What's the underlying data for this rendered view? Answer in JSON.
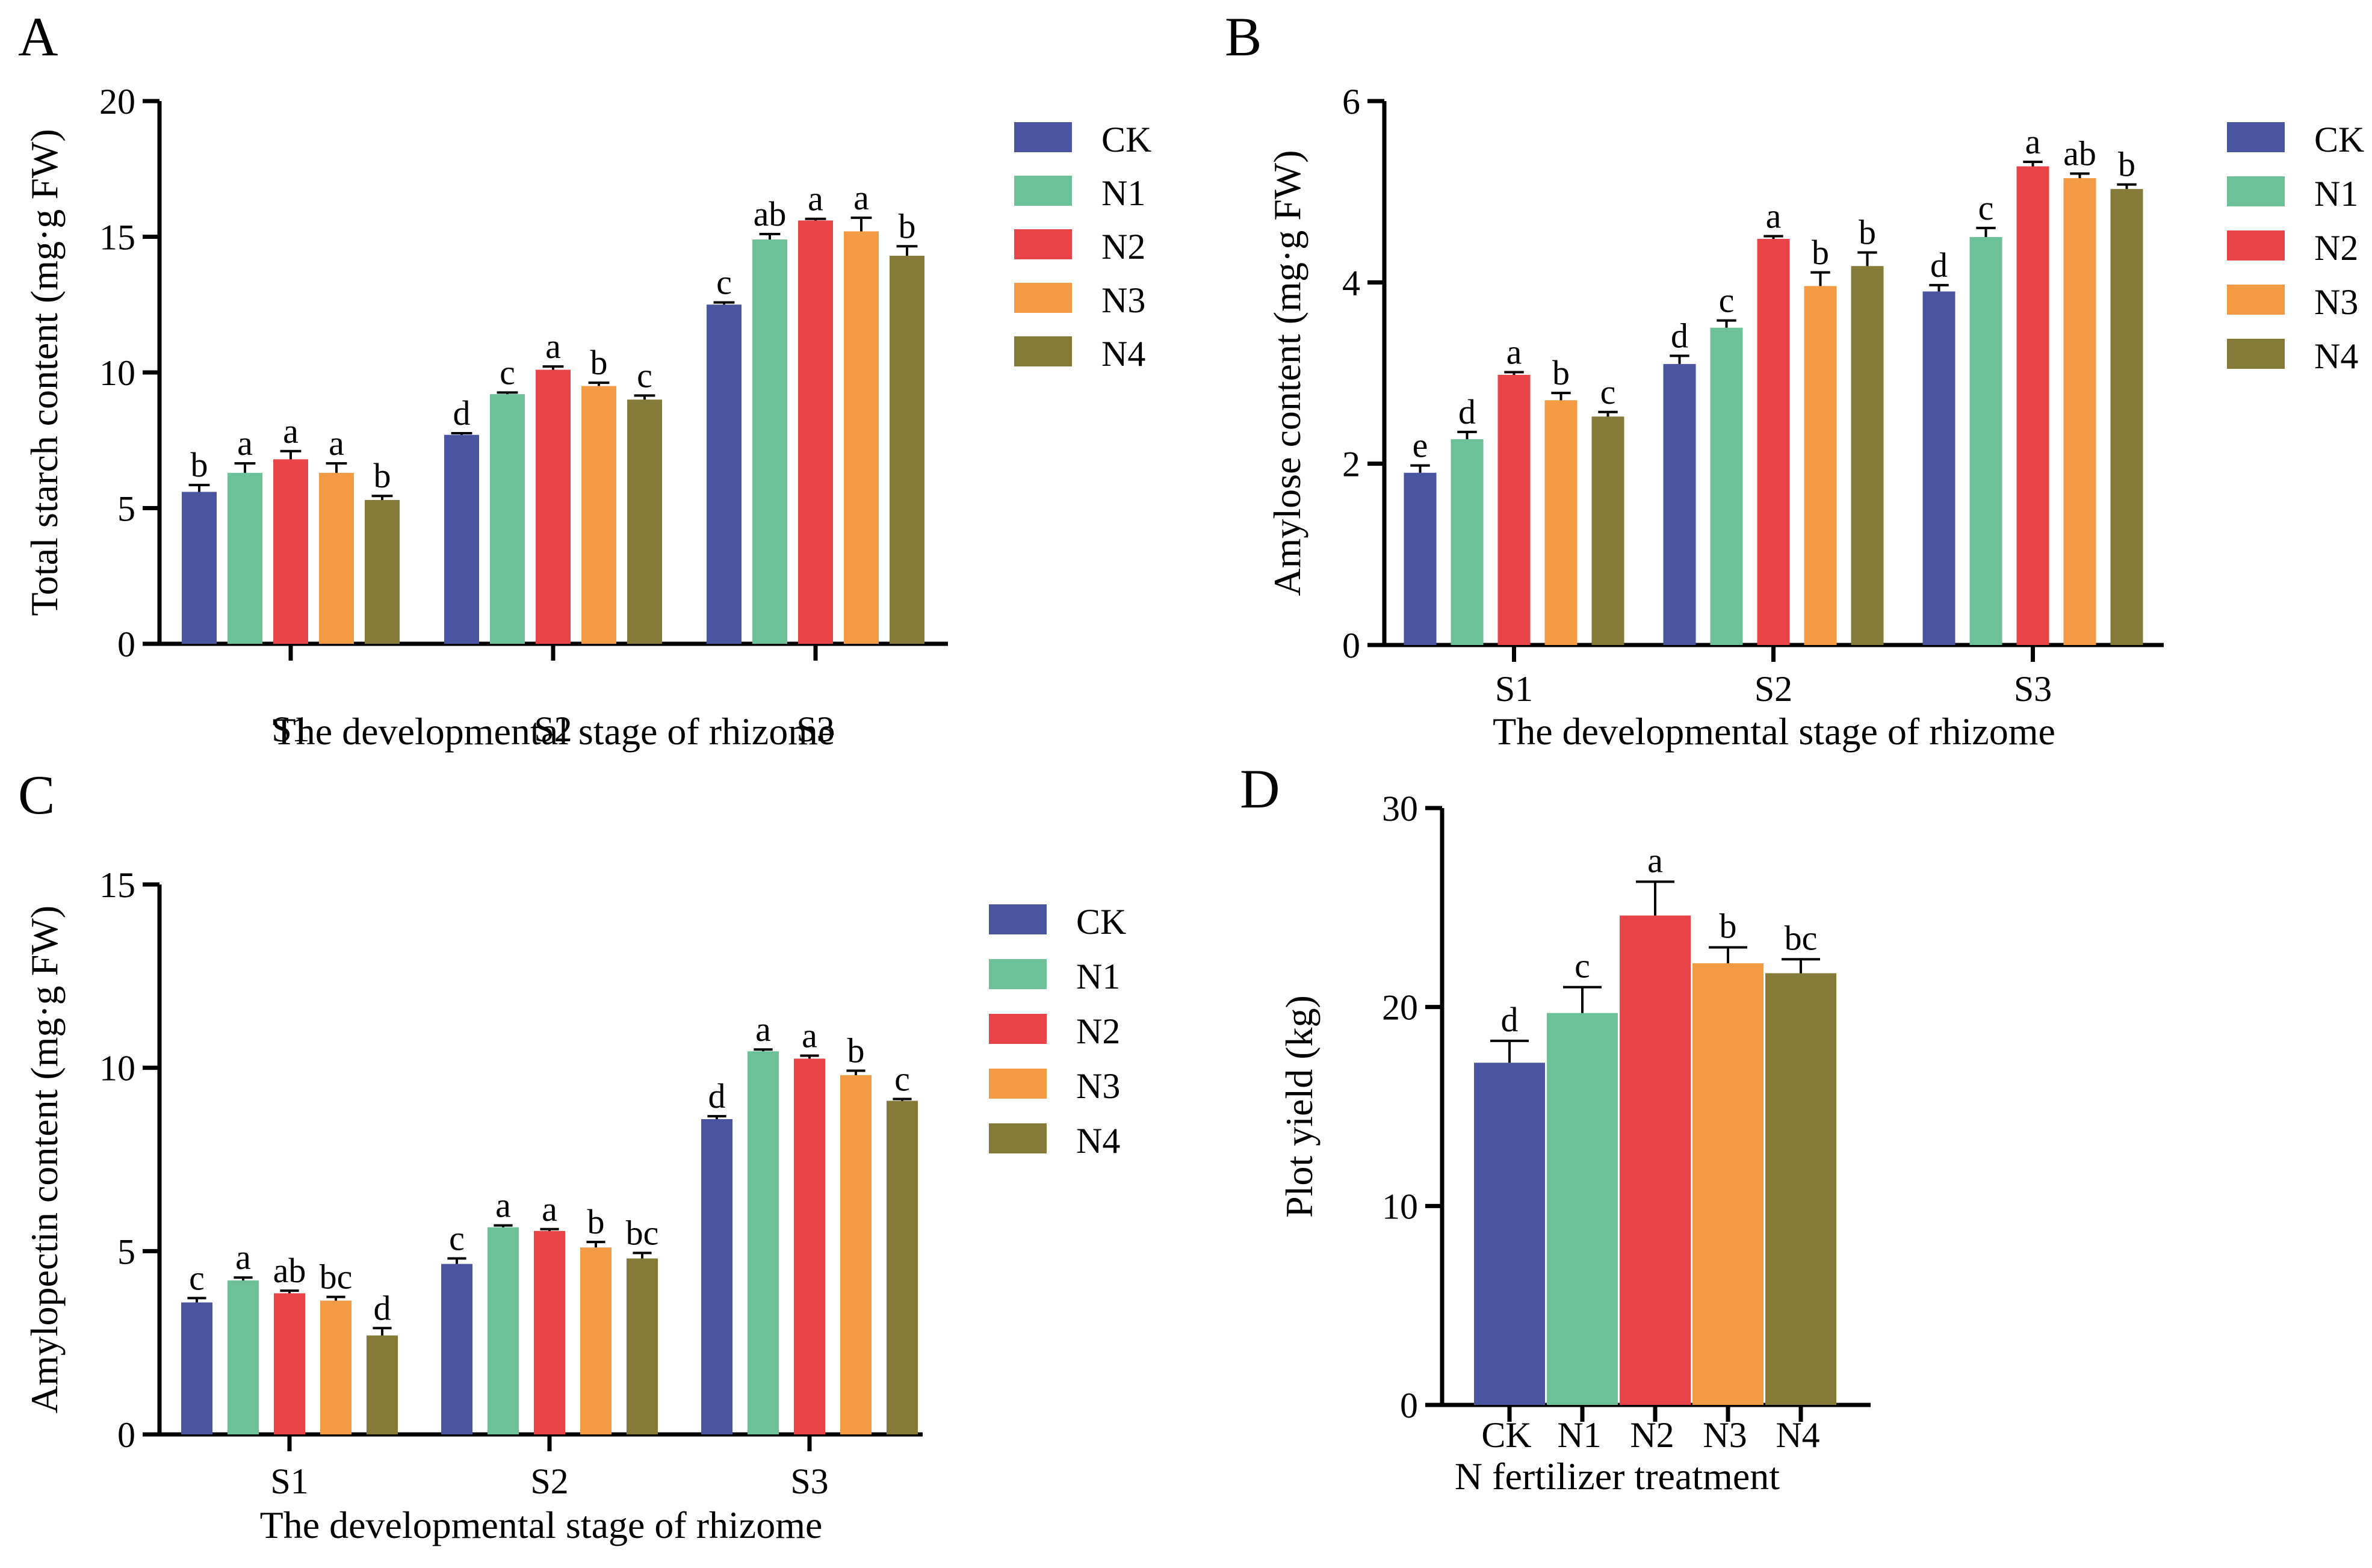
{
  "colors": {
    "CK": "#4a55a2",
    "N1": "#6cc199",
    "N2": "#e84347",
    "N3": "#f39b44",
    "N4": "#857a38"
  },
  "legend": [
    "CK",
    "N1",
    "N2",
    "N3",
    "N4"
  ],
  "chart_data": [
    {
      "id": "A",
      "type": "bar",
      "panel": "A",
      "xlabel": "The developmental stage of rhizome",
      "ylabel": "Total starch content (mg·g FW)",
      "ylim": [
        0,
        20
      ],
      "yticks": [
        0,
        5,
        10,
        15,
        20
      ],
      "categories": [
        "S1",
        "S2",
        "S3"
      ],
      "series": [
        {
          "name": "CK",
          "values": [
            5.6,
            7.7,
            12.5
          ],
          "errors": [
            0.25,
            0.06,
            0.08
          ],
          "letters": [
            "b",
            "d",
            "c"
          ]
        },
        {
          "name": "N1",
          "values": [
            6.3,
            9.2,
            14.9
          ],
          "errors": [
            0.35,
            0.06,
            0.2
          ],
          "letters": [
            "a",
            "c",
            "ab"
          ]
        },
        {
          "name": "N2",
          "values": [
            6.8,
            10.1,
            15.6
          ],
          "errors": [
            0.3,
            0.12,
            0.06
          ],
          "letters": [
            "a",
            "a",
            "a"
          ]
        },
        {
          "name": "N3",
          "values": [
            6.3,
            9.5,
            15.2
          ],
          "errors": [
            0.35,
            0.12,
            0.5
          ],
          "letters": [
            "a",
            "b",
            "a"
          ]
        },
        {
          "name": "N4",
          "values": [
            5.3,
            9.0,
            14.3
          ],
          "errors": [
            0.15,
            0.15,
            0.35
          ],
          "letters": [
            "b",
            "c",
            "b"
          ]
        }
      ]
    },
    {
      "id": "B",
      "type": "bar",
      "panel": "B",
      "xlabel": "The developmental stage of rhizome",
      "ylabel": "Amylose content (mg·g FW)",
      "ylim": [
        0,
        6
      ],
      "yticks": [
        0,
        2,
        4,
        6
      ],
      "categories": [
        "S1",
        "S2",
        "S3"
      ],
      "series": [
        {
          "name": "CK",
          "values": [
            1.9,
            3.1,
            3.9
          ],
          "errors": [
            0.08,
            0.09,
            0.07
          ],
          "letters": [
            "e",
            "d",
            "d"
          ]
        },
        {
          "name": "N1",
          "values": [
            2.27,
            3.5,
            4.5
          ],
          "errors": [
            0.08,
            0.08,
            0.1
          ],
          "letters": [
            "d",
            "c",
            "c"
          ]
        },
        {
          "name": "N2",
          "values": [
            2.98,
            4.48,
            5.28
          ],
          "errors": [
            0.03,
            0.03,
            0.05
          ],
          "letters": [
            "a",
            "a",
            "a"
          ]
        },
        {
          "name": "N3",
          "values": [
            2.7,
            3.96,
            5.15
          ],
          "errors": [
            0.08,
            0.15,
            0.05
          ],
          "letters": [
            "b",
            "b",
            "ab"
          ]
        },
        {
          "name": "N4",
          "values": [
            2.52,
            4.18,
            5.03
          ],
          "errors": [
            0.05,
            0.15,
            0.05
          ],
          "letters": [
            "c",
            "b",
            "b"
          ]
        }
      ]
    },
    {
      "id": "C",
      "type": "bar",
      "panel": "C",
      "xlabel": "The developmental stage of rhizome",
      "ylabel": "Amylopectin content (mg·g FW)",
      "ylim": [
        0,
        15
      ],
      "yticks": [
        0,
        5,
        10,
        15
      ],
      "categories": [
        "S1",
        "S2",
        "S3"
      ],
      "series": [
        {
          "name": "CK",
          "values": [
            3.6,
            4.65,
            8.6
          ],
          "errors": [
            0.12,
            0.15,
            0.08
          ],
          "letters": [
            "c",
            "c",
            "d"
          ]
        },
        {
          "name": "N1",
          "values": [
            4.2,
            5.65,
            10.45
          ],
          "errors": [
            0.08,
            0.05,
            0.05
          ],
          "letters": [
            "a",
            "a",
            "a"
          ]
        },
        {
          "name": "N2",
          "values": [
            3.85,
            5.55,
            10.25
          ],
          "errors": [
            0.07,
            0.05,
            0.08
          ],
          "letters": [
            "ab",
            "a",
            "a"
          ]
        },
        {
          "name": "N3",
          "values": [
            3.65,
            5.1,
            9.8
          ],
          "errors": [
            0.1,
            0.15,
            0.12
          ],
          "letters": [
            "bc",
            "b",
            "b"
          ]
        },
        {
          "name": "N4",
          "values": [
            2.7,
            4.8,
            9.1
          ],
          "errors": [
            0.2,
            0.15,
            0.05
          ],
          "letters": [
            "d",
            "bc",
            "c"
          ]
        }
      ]
    },
    {
      "id": "D",
      "type": "bar",
      "panel": "D",
      "xlabel": "N fertilizer treatment",
      "ylabel": "Plot yield (kg)",
      "ylim": [
        0,
        30
      ],
      "yticks": [
        0,
        10,
        20,
        30
      ],
      "categories": [
        "CK",
        "N1",
        "N2",
        "N3",
        "N4"
      ],
      "values": [
        17.2,
        19.7,
        24.6,
        22.2,
        21.7
      ],
      "errors": [
        1.1,
        1.3,
        1.7,
        0.8,
        0.7
      ],
      "letters": [
        "d",
        "c",
        "a",
        "b",
        "bc"
      ]
    }
  ]
}
